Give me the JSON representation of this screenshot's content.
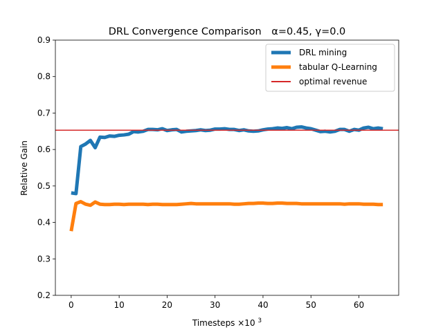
{
  "chart_data": {
    "type": "line",
    "title": {
      "main": "DRL Convergence Comparison",
      "params": "α=0.45, γ=0.0"
    },
    "xlabel": {
      "main": "Timesteps ×10",
      "exp": "3"
    },
    "ylabel": "Relative Gain",
    "xlim": [
      -3.3,
      68.3
    ],
    "ylim": [
      0.2,
      0.9
    ],
    "xticks": [
      0,
      10,
      20,
      30,
      40,
      50,
      60
    ],
    "yticks": [
      0.2,
      0.3,
      0.4,
      0.5,
      0.6,
      0.7,
      0.8,
      0.9
    ],
    "legend_position": "top-right",
    "series": [
      {
        "name": "DRL mining",
        "color": "#1f77b4",
        "x": [
          0,
          1,
          2,
          3,
          4,
          5,
          6,
          7,
          8,
          9,
          10,
          11,
          12,
          13,
          14,
          15,
          16,
          17,
          18,
          19,
          20,
          21,
          22,
          23,
          24,
          25,
          26,
          27,
          28,
          29,
          30,
          31,
          32,
          33,
          34,
          35,
          36,
          37,
          38,
          39,
          40,
          41,
          42,
          43,
          44,
          45,
          46,
          47,
          48,
          49,
          50,
          51,
          52,
          53,
          54,
          55,
          56,
          57,
          58,
          59,
          60,
          61,
          62,
          63,
          64,
          65
        ],
        "y": [
          0.481,
          0.479,
          0.608,
          0.615,
          0.625,
          0.605,
          0.634,
          0.633,
          0.637,
          0.636,
          0.639,
          0.64,
          0.642,
          0.649,
          0.648,
          0.65,
          0.655,
          0.655,
          0.654,
          0.657,
          0.652,
          0.654,
          0.655,
          0.648,
          0.65,
          0.651,
          0.652,
          0.654,
          0.652,
          0.653,
          0.656,
          0.656,
          0.657,
          0.655,
          0.655,
          0.652,
          0.654,
          0.651,
          0.65,
          0.651,
          0.654,
          0.656,
          0.657,
          0.659,
          0.658,
          0.66,
          0.657,
          0.661,
          0.662,
          0.659,
          0.657,
          0.653,
          0.649,
          0.65,
          0.648,
          0.65,
          0.655,
          0.655,
          0.65,
          0.655,
          0.653,
          0.659,
          0.661,
          0.657,
          0.659,
          0.657
        ]
      },
      {
        "name": "tabular Q-Learning",
        "color": "#ff7f0e",
        "x": [
          0,
          1,
          2,
          3,
          4,
          5,
          6,
          7,
          8,
          9,
          10,
          11,
          12,
          13,
          14,
          15,
          16,
          17,
          18,
          19,
          20,
          21,
          22,
          23,
          24,
          25,
          26,
          27,
          28,
          29,
          30,
          31,
          32,
          33,
          34,
          35,
          36,
          37,
          38,
          39,
          40,
          41,
          42,
          43,
          44,
          45,
          46,
          47,
          48,
          49,
          50,
          51,
          52,
          53,
          54,
          55,
          56,
          57,
          58,
          59,
          60,
          61,
          62,
          63,
          64,
          65
        ],
        "y": [
          0.376,
          0.452,
          0.457,
          0.45,
          0.447,
          0.456,
          0.45,
          0.449,
          0.449,
          0.45,
          0.45,
          0.449,
          0.45,
          0.45,
          0.45,
          0.45,
          0.449,
          0.45,
          0.45,
          0.449,
          0.449,
          0.449,
          0.449,
          0.45,
          0.451,
          0.452,
          0.451,
          0.451,
          0.451,
          0.451,
          0.451,
          0.451,
          0.451,
          0.451,
          0.45,
          0.45,
          0.451,
          0.452,
          0.452,
          0.453,
          0.453,
          0.452,
          0.452,
          0.453,
          0.453,
          0.452,
          0.452,
          0.452,
          0.451,
          0.451,
          0.451,
          0.451,
          0.451,
          0.451,
          0.451,
          0.451,
          0.451,
          0.45,
          0.451,
          0.451,
          0.451,
          0.45,
          0.45,
          0.45,
          0.449,
          0.449
        ]
      },
      {
        "name": "optimal revenue",
        "color": "#d62728",
        "type": "hline",
        "y": 0.653
      }
    ]
  }
}
